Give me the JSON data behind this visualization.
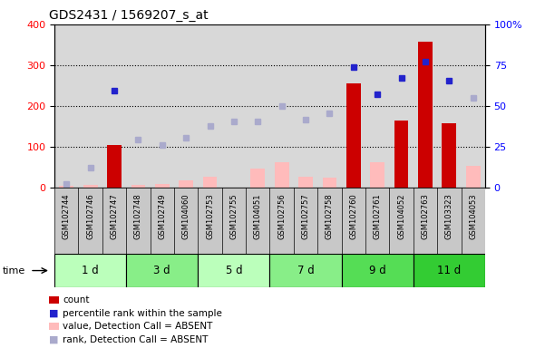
{
  "title": "GDS2431 / 1569207_s_at",
  "samples": [
    "GSM102744",
    "GSM102746",
    "GSM102747",
    "GSM102748",
    "GSM102749",
    "GSM104060",
    "GSM102753",
    "GSM102755",
    "GSM104051",
    "GSM102756",
    "GSM102757",
    "GSM102758",
    "GSM102760",
    "GSM102761",
    "GSM104052",
    "GSM102763",
    "GSM103323",
    "GSM104053"
  ],
  "time_groups": [
    {
      "label": "1 d",
      "start": 0,
      "end": 3,
      "color": "#bbffbb"
    },
    {
      "label": "3 d",
      "start": 3,
      "end": 6,
      "color": "#88ee88"
    },
    {
      "label": "5 d",
      "start": 6,
      "end": 9,
      "color": "#bbffbb"
    },
    {
      "label": "7 d",
      "start": 9,
      "end": 12,
      "color": "#88ee88"
    },
    {
      "label": "9 d",
      "start": 12,
      "end": 15,
      "color": "#55dd55"
    },
    {
      "label": "11 d",
      "start": 15,
      "end": 18,
      "color": "#33cc33"
    }
  ],
  "count_values": [
    0,
    0,
    105,
    0,
    0,
    0,
    0,
    0,
    0,
    0,
    0,
    0,
    255,
    0,
    165,
    358,
    158,
    0
  ],
  "percentile_values": [
    10,
    50,
    238,
    118,
    106,
    122,
    152,
    162,
    162,
    200,
    168,
    183,
    295,
    230,
    268,
    308,
    262,
    220
  ],
  "absent_value_values": [
    5,
    7,
    0,
    8,
    10,
    18,
    28,
    0,
    48,
    62,
    28,
    25,
    0,
    62,
    0,
    0,
    0,
    55
  ],
  "present_count": [
    false,
    false,
    true,
    false,
    false,
    false,
    false,
    false,
    false,
    false,
    false,
    false,
    true,
    false,
    true,
    true,
    true,
    false
  ],
  "present_percentile": [
    false,
    false,
    true,
    false,
    false,
    false,
    false,
    false,
    false,
    false,
    false,
    false,
    true,
    true,
    true,
    true,
    true,
    false
  ],
  "bar_color_red": "#cc0000",
  "bar_color_pink": "#ffbbbb",
  "dot_color_blue": "#2222cc",
  "dot_color_lightblue": "#aaaacc",
  "ylim_left": [
    0,
    400
  ],
  "ylim_right": [
    0,
    100
  ],
  "grid_values": [
    100,
    200,
    300
  ],
  "right_ticks": [
    0,
    25,
    50,
    75,
    100
  ],
  "chart_bg": "#d8d8d8",
  "label_bg": "#c8c8c8"
}
